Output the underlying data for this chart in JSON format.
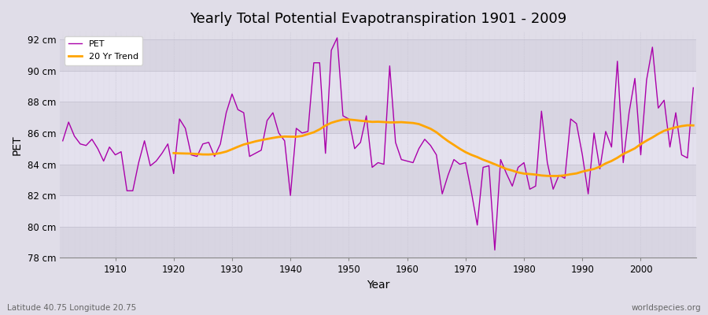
{
  "title": "Yearly Total Potential Evapotranspiration 1901 - 2009",
  "xlabel": "Year",
  "ylabel": "PET",
  "subtitle": "Latitude 40.75 Longitude 20.75",
  "watermark": "worldspecies.org",
  "bg_color": "#e0dde8",
  "plot_bg": "#dddae6",
  "pet_color": "#aa00aa",
  "trend_color": "#FFA500",
  "ylim": [
    78,
    92.5
  ],
  "yticks": [
    78,
    80,
    82,
    84,
    86,
    88,
    90,
    92
  ],
  "years": [
    1901,
    1902,
    1903,
    1904,
    1905,
    1906,
    1907,
    1908,
    1909,
    1910,
    1911,
    1912,
    1913,
    1914,
    1915,
    1916,
    1917,
    1918,
    1919,
    1920,
    1921,
    1922,
    1923,
    1924,
    1925,
    1926,
    1927,
    1928,
    1929,
    1930,
    1931,
    1932,
    1933,
    1934,
    1935,
    1936,
    1937,
    1938,
    1939,
    1940,
    1941,
    1942,
    1943,
    1944,
    1945,
    1946,
    1947,
    1948,
    1949,
    1950,
    1951,
    1952,
    1953,
    1954,
    1955,
    1956,
    1957,
    1958,
    1959,
    1960,
    1961,
    1962,
    1963,
    1964,
    1965,
    1966,
    1967,
    1968,
    1969,
    1970,
    1971,
    1972,
    1973,
    1974,
    1975,
    1976,
    1977,
    1978,
    1979,
    1980,
    1981,
    1982,
    1983,
    1984,
    1985,
    1986,
    1987,
    1988,
    1989,
    1990,
    1991,
    1992,
    1993,
    1994,
    1995,
    1996,
    1997,
    1998,
    1999,
    2000,
    2001,
    2002,
    2003,
    2004,
    2005,
    2006,
    2007,
    2008,
    2009
  ],
  "pet": [
    85.5,
    86.7,
    85.8,
    85.3,
    85.2,
    85.6,
    85.0,
    84.2,
    85.1,
    84.6,
    84.8,
    82.3,
    82.3,
    84.1,
    85.5,
    83.9,
    84.2,
    84.7,
    85.3,
    83.4,
    86.9,
    86.3,
    84.6,
    84.5,
    85.3,
    85.4,
    84.5,
    85.3,
    87.3,
    88.5,
    87.5,
    87.3,
    84.5,
    84.7,
    84.9,
    86.8,
    87.3,
    86.0,
    85.5,
    82.0,
    86.3,
    86.0,
    86.1,
    90.5,
    90.5,
    84.7,
    91.3,
    92.1,
    87.1,
    86.9,
    85.0,
    85.4,
    87.1,
    83.8,
    84.1,
    84.0,
    90.3,
    85.4,
    84.3,
    84.2,
    84.1,
    85.0,
    85.6,
    85.2,
    84.6,
    82.1,
    83.3,
    84.3,
    84.0,
    84.1,
    82.2,
    80.1,
    83.8,
    83.9,
    78.5,
    84.3,
    83.4,
    82.6,
    83.8,
    84.1,
    82.4,
    82.6,
    87.4,
    84.1,
    82.4,
    83.3,
    83.1,
    86.9,
    86.6,
    84.6,
    82.1,
    86.0,
    83.7,
    86.1,
    85.1,
    90.6,
    84.1,
    87.3,
    89.5,
    84.6,
    89.4,
    91.5,
    87.6,
    88.1,
    85.1,
    87.3,
    84.6,
    84.4,
    88.9
  ],
  "xticks": [
    1910,
    1920,
    1930,
    1940,
    1950,
    1960,
    1970,
    1980,
    1990,
    2000
  ],
  "row_colors": [
    "#d8d5e2",
    "#e4e1ee"
  ],
  "grid_color": "#c8c5d4",
  "alt_row_color": "#ccc9d8"
}
